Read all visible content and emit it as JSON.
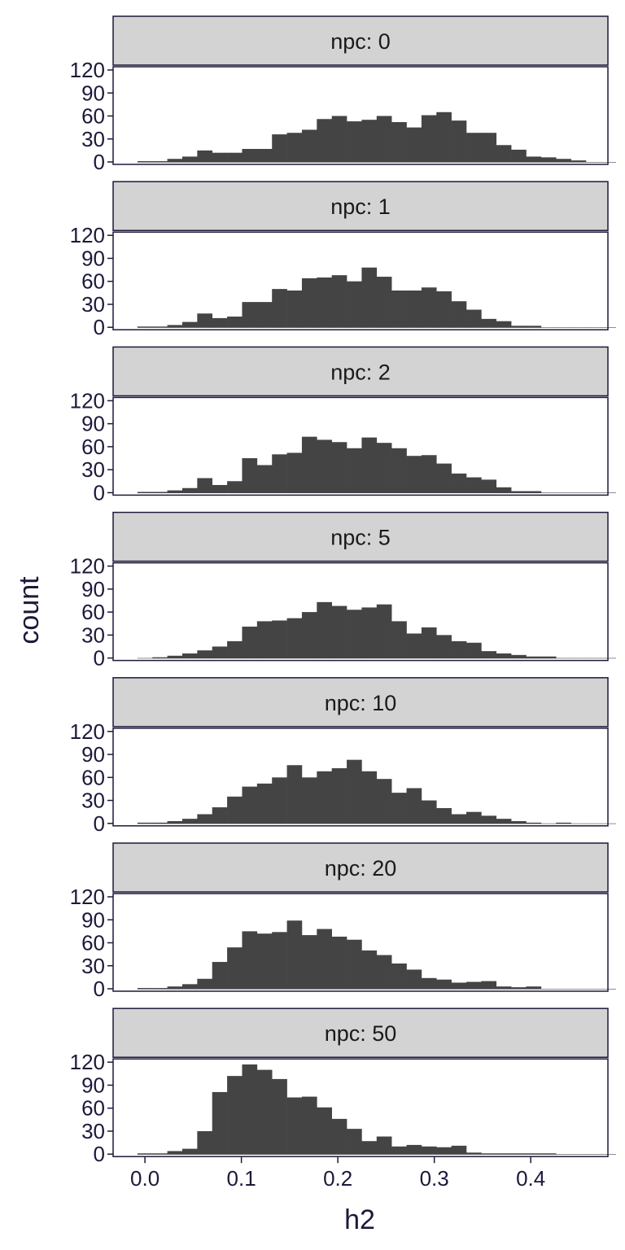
{
  "chart_data": {
    "type": "bar",
    "facet_variable": "npc",
    "facet_prefix": "npc: ",
    "xlabel": "h2",
    "ylabel": "count",
    "xlim": [
      -0.033,
      0.48
    ],
    "ylim": [
      0,
      120
    ],
    "x_ticks": [
      0.0,
      0.1,
      0.2,
      0.3,
      0.4
    ],
    "x_tick_labels": [
      "0.0",
      "0.1",
      "0.2",
      "0.3",
      "0.4"
    ],
    "y_ticks": [
      0,
      30,
      60,
      90,
      120
    ],
    "y_tick_labels": [
      "0",
      "30",
      "60",
      "90",
      "120"
    ],
    "bin_width": 0.0155,
    "first_bin_start": -0.0078,
    "colors": {
      "bar": "#444444",
      "strip": "#d3d3d3",
      "axis": "#1c1a3a",
      "text": "#1c1a3a"
    },
    "facets": [
      {
        "label": "npc: 0",
        "values": [
          1,
          1,
          4,
          7,
          15,
          12,
          12,
          17,
          17,
          36,
          38,
          42,
          56,
          60,
          53,
          55,
          60,
          52,
          45,
          61,
          65,
          54,
          38,
          38,
          22,
          16,
          7,
          6,
          4,
          2,
          0,
          0
        ]
      },
      {
        "label": "npc: 1",
        "values": [
          1,
          1,
          3,
          7,
          18,
          12,
          14,
          33,
          33,
          50,
          48,
          64,
          65,
          68,
          60,
          78,
          66,
          48,
          48,
          52,
          47,
          34,
          23,
          11,
          8,
          2,
          2,
          0,
          0,
          0,
          0,
          0
        ]
      },
      {
        "label": "npc: 2",
        "values": [
          1,
          1,
          3,
          6,
          19,
          10,
          15,
          45,
          36,
          50,
          52,
          73,
          69,
          66,
          58,
          72,
          65,
          58,
          48,
          49,
          38,
          25,
          20,
          17,
          7,
          2,
          2,
          0,
          0,
          0,
          0,
          0
        ]
      },
      {
        "label": "npc: 5",
        "values": [
          0,
          1,
          3,
          6,
          10,
          15,
          22,
          41,
          48,
          49,
          52,
          60,
          73,
          68,
          63,
          66,
          70,
          48,
          32,
          40,
          30,
          22,
          20,
          9,
          6,
          4,
          2,
          2,
          0,
          0,
          0,
          0
        ]
      },
      {
        "label": "npc: 10",
        "values": [
          1,
          1,
          3,
          6,
          12,
          21,
          35,
          48,
          52,
          60,
          76,
          60,
          68,
          72,
          83,
          68,
          58,
          40,
          46,
          30,
          20,
          12,
          15,
          10,
          6,
          3,
          1,
          0,
          1,
          0,
          0,
          0
        ]
      },
      {
        "label": "npc: 20",
        "values": [
          1,
          1,
          3,
          6,
          13,
          35,
          54,
          75,
          72,
          74,
          89,
          70,
          78,
          68,
          64,
          50,
          44,
          33,
          25,
          14,
          12,
          8,
          9,
          10,
          3,
          2,
          3,
          0,
          0,
          0,
          0,
          0
        ]
      },
      {
        "label": "npc: 50",
        "values": [
          1,
          1,
          4,
          7,
          30,
          81,
          102,
          117,
          110,
          98,
          74,
          75,
          61,
          46,
          33,
          17,
          23,
          10,
          12,
          10,
          9,
          11,
          2,
          1,
          1,
          1,
          1,
          1,
          0,
          0,
          0,
          0
        ]
      }
    ]
  }
}
